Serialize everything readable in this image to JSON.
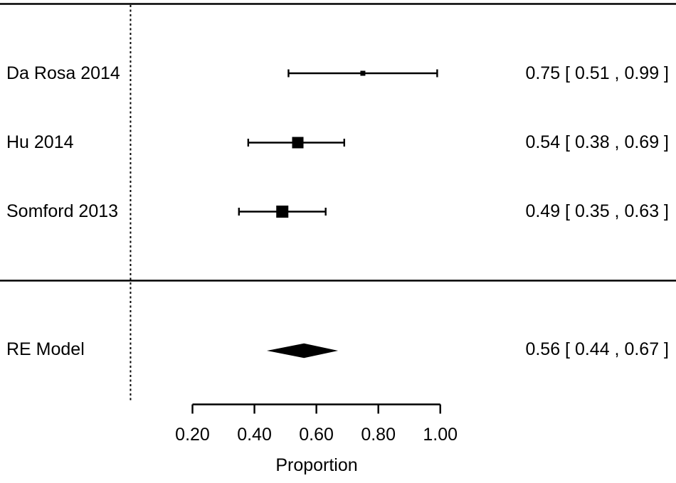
{
  "chart_data": {
    "type": "forest",
    "title": "",
    "xlabel": "Proportion",
    "colors": {
      "foreground": "#000000",
      "background": "#ffffff"
    },
    "axis": {
      "xlim": [
        0.2,
        1.0
      ],
      "ticks": [
        0.2,
        0.4,
        0.6,
        0.8,
        1.0
      ],
      "tick_labels": [
        "0.20",
        "0.40",
        "0.60",
        "0.80",
        "1.00"
      ],
      "reference_line_x": 0.0,
      "grid": false
    },
    "studies": [
      {
        "label": "Da Rosa 2014",
        "estimate": 0.75,
        "ci_lower": 0.51,
        "ci_upper": 0.99,
        "ci_text": "0.75 [ 0.51 , 0.99 ]",
        "marker_size_px": 7
      },
      {
        "label": "Hu 2014",
        "estimate": 0.54,
        "ci_lower": 0.38,
        "ci_upper": 0.69,
        "ci_text": "0.54 [ 0.38 , 0.69 ]",
        "marker_size_px": 16
      },
      {
        "label": "Somford 2013",
        "estimate": 0.49,
        "ci_lower": 0.35,
        "ci_upper": 0.63,
        "ci_text": "0.49 [ 0.35 , 0.63 ]",
        "marker_size_px": 17
      }
    ],
    "summary": {
      "label": "RE Model",
      "estimate": 0.56,
      "ci_lower": 0.44,
      "ci_upper": 0.67,
      "ci_text": "0.56 [ 0.44 , 0.67 ]"
    }
  }
}
